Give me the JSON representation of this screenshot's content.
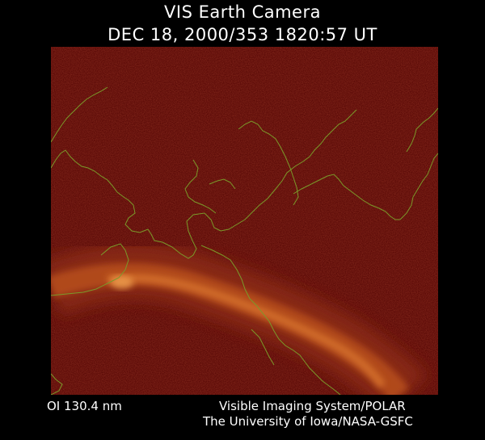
{
  "header": {
    "instrument": "VIS Earth Camera",
    "datetime": "DEC 18, 2000/353 1820:57 UT"
  },
  "footer": {
    "wavelength": "OI  130.4 nm",
    "system": "Visible Imaging System/POLAR",
    "institution": "The University of Iowa/NASA-GSFC"
  },
  "colors": {
    "background": "#000000",
    "image_base": "#5a0906",
    "aurora_core": "#e8883a",
    "coastline": "#7a9a2a",
    "text": "#ffffff"
  },
  "icons": [
    "earth-image",
    "aurora-oval",
    "continent-coastlines"
  ]
}
